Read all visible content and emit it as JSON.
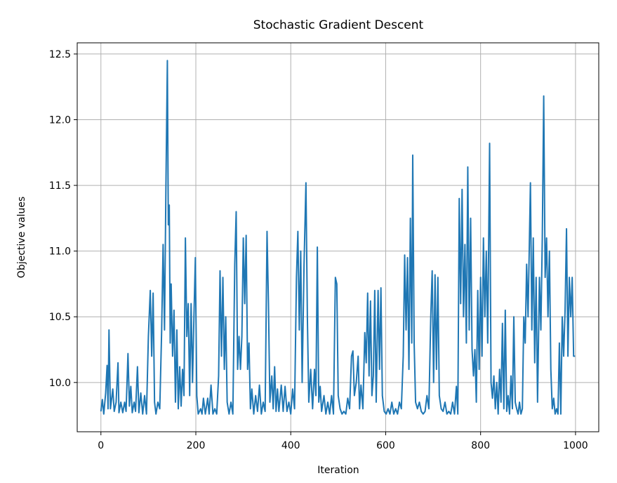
{
  "chart_data": {
    "type": "line",
    "title": "Stochastic Gradient Descent",
    "x_label": "Iteration",
    "y_label": "Objective values",
    "color": "#1f77b4",
    "grid": true,
    "xlim": [
      -49.95,
      1048.95
    ],
    "ylim": [
      9.625,
      12.585
    ],
    "xticks": [
      0,
      200,
      400,
      600,
      800,
      1000
    ],
    "yticks": [
      {
        "value": 10,
        "label": "10.0"
      },
      10.5,
      {
        "value": 11,
        "label": "11.0"
      },
      11.5,
      {
        "value": 12,
        "label": "12.0"
      },
      12.5
    ],
    "x": [
      0,
      3,
      6,
      10,
      13,
      15,
      17,
      20,
      25,
      28,
      32,
      36,
      38,
      42,
      46,
      50,
      53,
      57,
      60,
      63,
      66,
      70,
      73,
      77,
      80,
      84,
      88,
      92,
      96,
      100,
      104,
      107,
      110,
      113,
      116,
      120,
      124,
      128,
      131,
      134,
      137,
      140,
      142,
      144,
      146,
      148,
      151,
      154,
      157,
      160,
      163,
      166,
      169,
      172,
      175,
      178,
      181,
      184,
      187,
      190,
      193,
      196,
      199,
      202,
      205,
      210,
      213,
      216,
      220,
      225,
      228,
      232,
      236,
      240,
      244,
      248,
      251,
      254,
      257,
      260,
      263,
      266,
      270,
      274,
      278,
      282,
      285,
      288,
      291,
      294,
      297,
      300,
      303,
      306,
      309,
      312,
      315,
      318,
      322,
      326,
      330,
      334,
      338,
      342,
      346,
      350,
      353,
      356,
      360,
      363,
      366,
      369,
      372,
      375,
      380,
      384,
      388,
      392,
      396,
      400,
      404,
      408,
      412,
      415,
      418,
      421,
      424,
      428,
      432,
      435,
      438,
      442,
      446,
      450,
      453,
      456,
      459,
      462,
      465,
      470,
      474,
      478,
      482,
      486,
      490,
      494,
      497,
      500,
      504,
      508,
      512,
      516,
      520,
      524,
      528,
      531,
      534,
      538,
      542,
      545,
      548,
      552,
      556,
      559,
      562,
      565,
      568,
      571,
      574,
      577,
      580,
      584,
      587,
      590,
      593,
      597,
      601,
      605,
      609,
      613,
      617,
      621,
      625,
      629,
      633,
      637,
      640,
      643,
      646,
      649,
      652,
      655,
      657,
      660,
      663,
      667,
      671,
      675,
      679,
      683,
      687,
      691,
      695,
      698,
      701,
      704,
      707,
      710,
      713,
      717,
      721,
      725,
      729,
      733,
      737,
      741,
      745,
      749,
      752,
      755,
      758,
      761,
      764,
      767,
      770,
      773,
      776,
      779,
      782,
      785,
      788,
      791,
      794,
      797,
      800,
      803,
      806,
      809,
      812,
      815,
      819,
      822,
      825,
      828,
      831,
      834,
      837,
      840,
      843,
      846,
      849,
      852,
      855,
      858,
      861,
      864,
      867,
      870,
      873,
      876,
      879,
      882,
      885,
      888,
      891,
      894,
      897,
      900,
      905,
      908,
      911,
      914,
      917,
      920,
      924,
      927,
      930,
      933,
      936,
      939,
      942,
      945,
      948,
      951,
      954,
      957,
      960,
      963,
      966,
      969,
      972,
      975,
      978,
      981,
      984,
      987,
      990,
      993,
      996,
      999
    ],
    "values": [
      9.78,
      9.87,
      9.76,
      9.92,
      10.13,
      9.8,
      10.4,
      9.8,
      9.95,
      9.78,
      9.85,
      10.15,
      9.77,
      9.85,
      9.77,
      9.85,
      9.78,
      10.22,
      9.82,
      9.97,
      9.77,
      9.85,
      9.78,
      10.12,
      9.77,
      9.92,
      9.76,
      9.9,
      9.76,
      10.35,
      10.7,
      10.2,
      10.68,
      9.85,
      9.76,
      9.85,
      9.8,
      10.4,
      11.05,
      10.4,
      11.5,
      12.45,
      11.2,
      11.35,
      10.3,
      10.75,
      10.2,
      10.55,
      9.85,
      10.4,
      9.8,
      10.12,
      9.82,
      10.1,
      9.9,
      11.1,
      10.35,
      10.6,
      9.9,
      10.6,
      10.0,
      10.5,
      10.95,
      9.9,
      9.76,
      9.8,
      9.76,
      9.88,
      9.76,
      9.88,
      9.76,
      9.98,
      9.76,
      9.8,
      9.76,
      10.05,
      10.85,
      10.2,
      10.8,
      10.1,
      10.5,
      9.85,
      9.76,
      9.85,
      9.76,
      10.9,
      11.3,
      10.1,
      10.35,
      10.1,
      10.35,
      11.1,
      10.6,
      11.12,
      10.1,
      10.3,
      9.8,
      9.95,
      9.76,
      9.9,
      9.78,
      9.98,
      9.76,
      9.85,
      9.78,
      11.15,
      10.6,
      9.85,
      10.05,
      9.8,
      10.12,
      9.78,
      9.95,
      9.78,
      9.98,
      9.78,
      9.97,
      9.78,
      9.85,
      9.76,
      9.95,
      9.8,
      10.8,
      11.15,
      10.4,
      11.0,
      10.0,
      10.9,
      11.52,
      10.5,
      9.85,
      10.1,
      9.8,
      10.1,
      9.9,
      11.03,
      9.85,
      9.97,
      9.78,
      9.9,
      9.76,
      9.85,
      9.76,
      9.9,
      9.76,
      10.8,
      10.75,
      9.9,
      9.8,
      9.76,
      9.78,
      9.76,
      9.88,
      9.8,
      10.2,
      10.24,
      9.9,
      10.0,
      10.2,
      9.8,
      9.98,
      9.8,
      10.38,
      10.15,
      10.68,
      10.05,
      10.62,
      9.9,
      10.05,
      10.7,
      9.85,
      10.7,
      10.1,
      10.72,
      9.9,
      9.78,
      9.76,
      9.8,
      9.76,
      9.85,
      9.76,
      9.8,
      9.76,
      9.85,
      9.8,
      10.2,
      10.97,
      10.4,
      10.95,
      10.1,
      11.25,
      10.3,
      11.73,
      10.3,
      9.85,
      9.8,
      9.85,
      9.78,
      9.76,
      9.78,
      9.9,
      9.8,
      10.5,
      10.85,
      10.0,
      10.82,
      10.1,
      10.8,
      9.9,
      9.8,
      9.78,
      9.85,
      9.76,
      9.78,
      9.76,
      9.85,
      9.76,
      9.97,
      9.76,
      11.4,
      10.6,
      11.47,
      10.5,
      11.05,
      10.3,
      11.64,
      10.4,
      11.25,
      10.25,
      10.05,
      10.25,
      9.85,
      10.7,
      10.1,
      10.8,
      10.2,
      11.1,
      10.5,
      11.0,
      10.3,
      11.82,
      10.0,
      9.88,
      10.05,
      9.8,
      10.0,
      9.76,
      10.1,
      9.85,
      10.45,
      9.8,
      10.55,
      9.78,
      9.9,
      9.76,
      10.05,
      9.8,
      10.5,
      9.85,
      9.8,
      9.76,
      9.85,
      9.76,
      9.8,
      10.5,
      10.3,
      10.9,
      10.5,
      11.52,
      10.4,
      11.1,
      10.15,
      10.8,
      9.85,
      10.8,
      10.4,
      11.1,
      12.18,
      10.8,
      11.1,
      10.5,
      11.0,
      10.1,
      9.8,
      9.88,
      9.76,
      9.8,
      9.76,
      10.3,
      9.76,
      10.5,
      10.2,
      10.55,
      11.17,
      10.2,
      10.8,
      10.5,
      10.8,
      10.2,
      10.2
    ]
  }
}
